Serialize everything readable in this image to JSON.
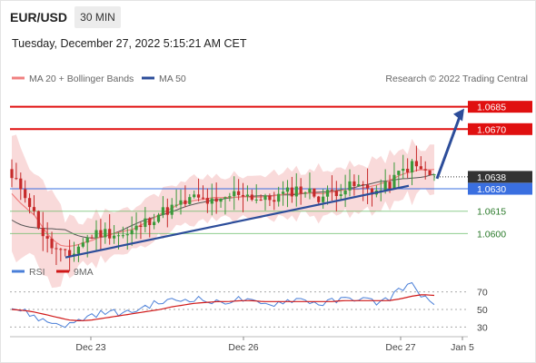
{
  "header": {
    "symbol": "EUR/USD",
    "timeframe": "30 MIN",
    "datetime": "Tuesday, December 27, 2022 5:15:21 AM CET"
  },
  "legend": {
    "ma20_label": "MA 20 + Bollinger Bands",
    "ma50_label": "MA 50",
    "copyright": "Research © 2022 Trading Central",
    "rsi_label": "RSI",
    "ma9_label": "9MA"
  },
  "colors": {
    "resistance": "#e01010",
    "support": "#5fb85f",
    "pivot": "#3a6fe0",
    "current": "#333333",
    "trendline": "#2c4d9a",
    "ma20": "#f08080",
    "ma50": "#555555",
    "bollinger": "#f8d3d3",
    "bull": "#3a9a3a",
    "bear": "#c62a2a",
    "rsi": "#4a7fd8",
    "ma9": "#d01818"
  },
  "chart_data": [
    {
      "type": "candlestick",
      "title": "",
      "x_tick_labels": [
        "Dec 23",
        "Dec 26",
        "Dec 27",
        "Jan 5"
      ],
      "ylim": [
        1.0585,
        1.07
      ],
      "price_levels": [
        {
          "role": "resistance",
          "label": "1.0685",
          "value": 1.0685
        },
        {
          "role": "resistance",
          "label": "1.0670",
          "value": 1.067
        },
        {
          "role": "current",
          "label": "1.0638",
          "value": 1.0638
        },
        {
          "role": "pivot",
          "label": "1.0630",
          "value": 1.063
        },
        {
          "role": "support",
          "label": "1.0615",
          "value": 1.0615
        },
        {
          "role": "support",
          "label": "1.0600",
          "value": 1.06
        }
      ],
      "trendline": {
        "from": [
          0.0,
          1.0584
        ],
        "to": [
          1.0,
          1.0632
        ]
      },
      "forecast_arrow": {
        "from": 1.0638,
        "to": 1.0685
      },
      "candle_path": [
        1.0636,
        1.063,
        1.0612,
        1.0595,
        1.0588,
        1.0584,
        1.0593,
        1.0599,
        1.0601,
        1.06,
        1.0598,
        1.0604,
        1.0609,
        1.0614,
        1.0617,
        1.062,
        1.0624,
        1.0622,
        1.0619,
        1.0625,
        1.0628,
        1.0625,
        1.0622,
        1.0624,
        1.0627,
        1.063,
        1.0628,
        1.0624,
        1.0628,
        1.063,
        1.0632,
        1.0631,
        1.0628,
        1.0632,
        1.0641,
        1.0646,
        1.0642,
        1.0638
      ]
    },
    {
      "type": "line",
      "title": "RSI",
      "series": [
        {
          "name": "RSI"
        },
        {
          "name": "9MA"
        }
      ],
      "yticks": [
        70,
        50,
        30
      ],
      "ylim": [
        20,
        80
      ],
      "rsi": [
        52,
        48,
        42,
        36,
        34,
        32,
        38,
        44,
        46,
        47,
        45,
        50,
        55,
        58,
        60,
        61,
        63,
        60,
        57,
        60,
        62,
        58,
        55,
        57,
        60,
        62,
        60,
        56,
        59,
        61,
        63,
        61,
        58,
        62,
        74,
        78,
        66,
        52
      ],
      "ma9": [
        50,
        49,
        47,
        44,
        41,
        38,
        37,
        38,
        40,
        42,
        44,
        46,
        48,
        50,
        53,
        55,
        57,
        58,
        59,
        59,
        60,
        60,
        59,
        59,
        59,
        59,
        59,
        59,
        59,
        60,
        60,
        60,
        60,
        60,
        62,
        65,
        67,
        66
      ]
    }
  ]
}
